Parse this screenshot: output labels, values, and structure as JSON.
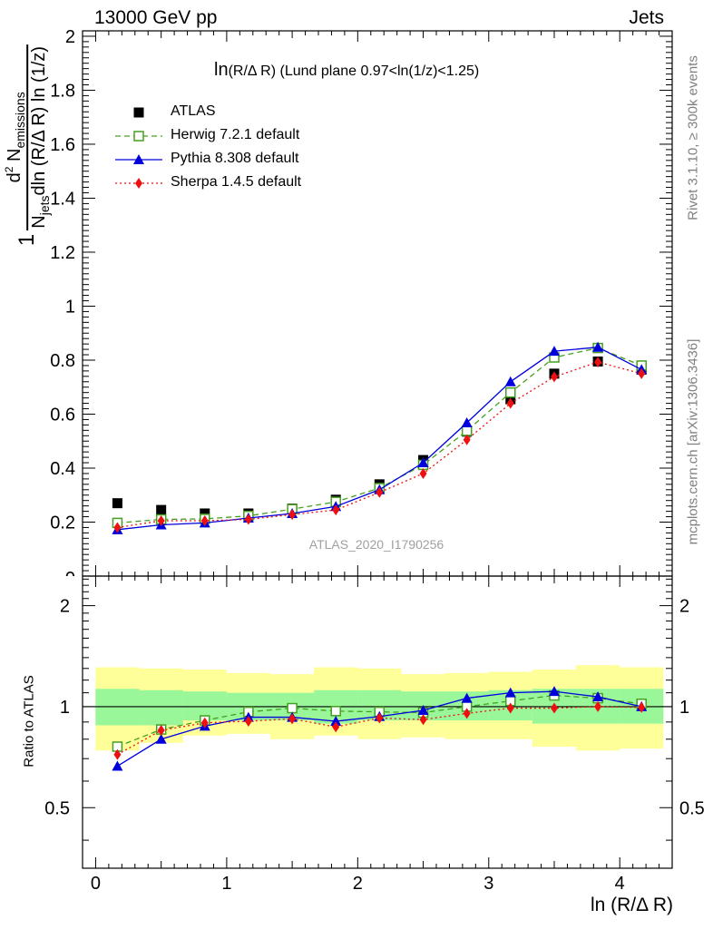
{
  "header": {
    "left": "13000 GeV pp",
    "right": "Jets"
  },
  "side_labels": {
    "rivet": "Rivet 3.1.10, ≥ 300k events",
    "mcplots": "mcplots.cern.ch [arXiv:1306.3436]"
  },
  "chart_data": {
    "type": "line",
    "title": "ln(R/Δ R) (Lund plane 0.97<ln(1/z)<1.25)",
    "title_parts": [
      "ln",
      "(R/Δ R)",
      "(Lund plane 0.97<ln(1/z)<1.25)"
    ],
    "watermark": "ATLAS_2020_I1790256",
    "xlabel": "ln (R/Δ R)",
    "ylabel_main": "1/N_jets dN_emissions/dln(R/ΔR)dln(1/z)",
    "ylabel_frac": {
      "num": "d",
      "num_sup": "2",
      "num_rest": " N",
      "num_sub": "emissions",
      "den": "N",
      "den_sub": "jets",
      "den_rest": "dln (R/Δ R) ln (1/z)",
      "one": "1"
    },
    "ylabel_ratio": "Ratio to ATLAS",
    "x": [
      0.166,
      0.5,
      0.833,
      1.166,
      1.5,
      1.833,
      2.166,
      2.5,
      2.833,
      3.166,
      3.5,
      3.833,
      4.166
    ],
    "xlim": [
      -0.1,
      4.4
    ],
    "xticks": [
      0,
      1,
      2,
      3,
      4
    ],
    "xtick_labels": [
      "0",
      "1",
      "2",
      "3",
      "4"
    ],
    "main": {
      "ylim": [
        0,
        2.02
      ],
      "yticks": [
        0.2,
        0.4,
        0.6,
        0.8,
        1.0,
        1.2,
        1.4,
        1.6,
        1.8,
        2.0
      ],
      "ytick_labels": [
        "0.2",
        "0.4",
        "0.6",
        "0.8",
        "1",
        "1.2",
        "1.4",
        "1.6",
        "1.8",
        "2"
      ],
      "partial_label": "0"
    },
    "ratio": {
      "ylim": [
        0.33,
        2.45
      ],
      "log": true,
      "yticks": [
        0.5,
        1,
        2
      ],
      "ytick_labels": [
        "0.5",
        "1",
        "2"
      ],
      "band_green_lo": [
        0.88,
        0.88,
        0.91,
        0.91,
        0.91,
        0.89,
        0.91,
        0.91,
        0.91,
        0.91,
        0.89,
        0.89,
        0.89
      ],
      "band_green_hi": [
        1.13,
        1.12,
        1.11,
        1.1,
        1.1,
        1.12,
        1.12,
        1.11,
        1.11,
        1.12,
        1.13,
        1.13,
        1.13
      ],
      "band_yellow_lo": [
        0.74,
        0.78,
        0.82,
        0.83,
        0.8,
        0.82,
        0.8,
        0.81,
        0.8,
        0.8,
        0.76,
        0.74,
        0.75
      ],
      "band_yellow_hi": [
        1.31,
        1.3,
        1.29,
        1.26,
        1.25,
        1.31,
        1.3,
        1.25,
        1.26,
        1.27,
        1.29,
        1.33,
        1.31
      ]
    },
    "legend_position": "top-left",
    "series": [
      {
        "name": "ATLAS",
        "marker": "square-filled",
        "color": "#000000",
        "values": [
          0.27,
          0.245,
          0.232,
          0.232,
          0.25,
          0.283,
          0.34,
          0.43,
          0.535,
          0.655,
          0.75,
          0.795,
          0.765
        ]
      },
      {
        "name": "Herwig 7.2.1 default",
        "marker": "square-open",
        "color": "#44a020",
        "dash": "6,4",
        "values": [
          0.197,
          0.21,
          0.212,
          0.223,
          0.248,
          0.275,
          0.326,
          0.412,
          0.538,
          0.68,
          0.81,
          0.845,
          0.78
        ],
        "ratio": [
          0.76,
          0.855,
          0.91,
          0.965,
          0.99,
          0.97,
          0.965,
          0.96,
          1.0,
          1.04,
          1.08,
          1.06,
          1.02
        ]
      },
      {
        "name": "Pythia 8.308 default",
        "marker": "triangle-filled",
        "color": "#0000dd",
        "dash": "",
        "values": [
          0.172,
          0.19,
          0.197,
          0.215,
          0.232,
          0.258,
          0.32,
          0.42,
          0.568,
          0.72,
          0.833,
          0.848,
          0.765
        ],
        "ratio": [
          0.665,
          0.8,
          0.875,
          0.93,
          0.93,
          0.905,
          0.935,
          0.975,
          1.06,
          1.1,
          1.11,
          1.07,
          1.0
        ]
      },
      {
        "name": "Sherpa 1.4.5 default",
        "marker": "diamond-filled",
        "color": "#ee1010",
        "dash": "2,3",
        "values": [
          0.18,
          0.205,
          0.205,
          0.21,
          0.228,
          0.245,
          0.31,
          0.38,
          0.505,
          0.64,
          0.738,
          0.793,
          0.75
        ],
        "ratio": [
          0.72,
          0.85,
          0.895,
          0.905,
          0.92,
          0.87,
          0.925,
          0.915,
          0.955,
          0.99,
          0.99,
          1.0,
          0.995
        ]
      }
    ]
  }
}
